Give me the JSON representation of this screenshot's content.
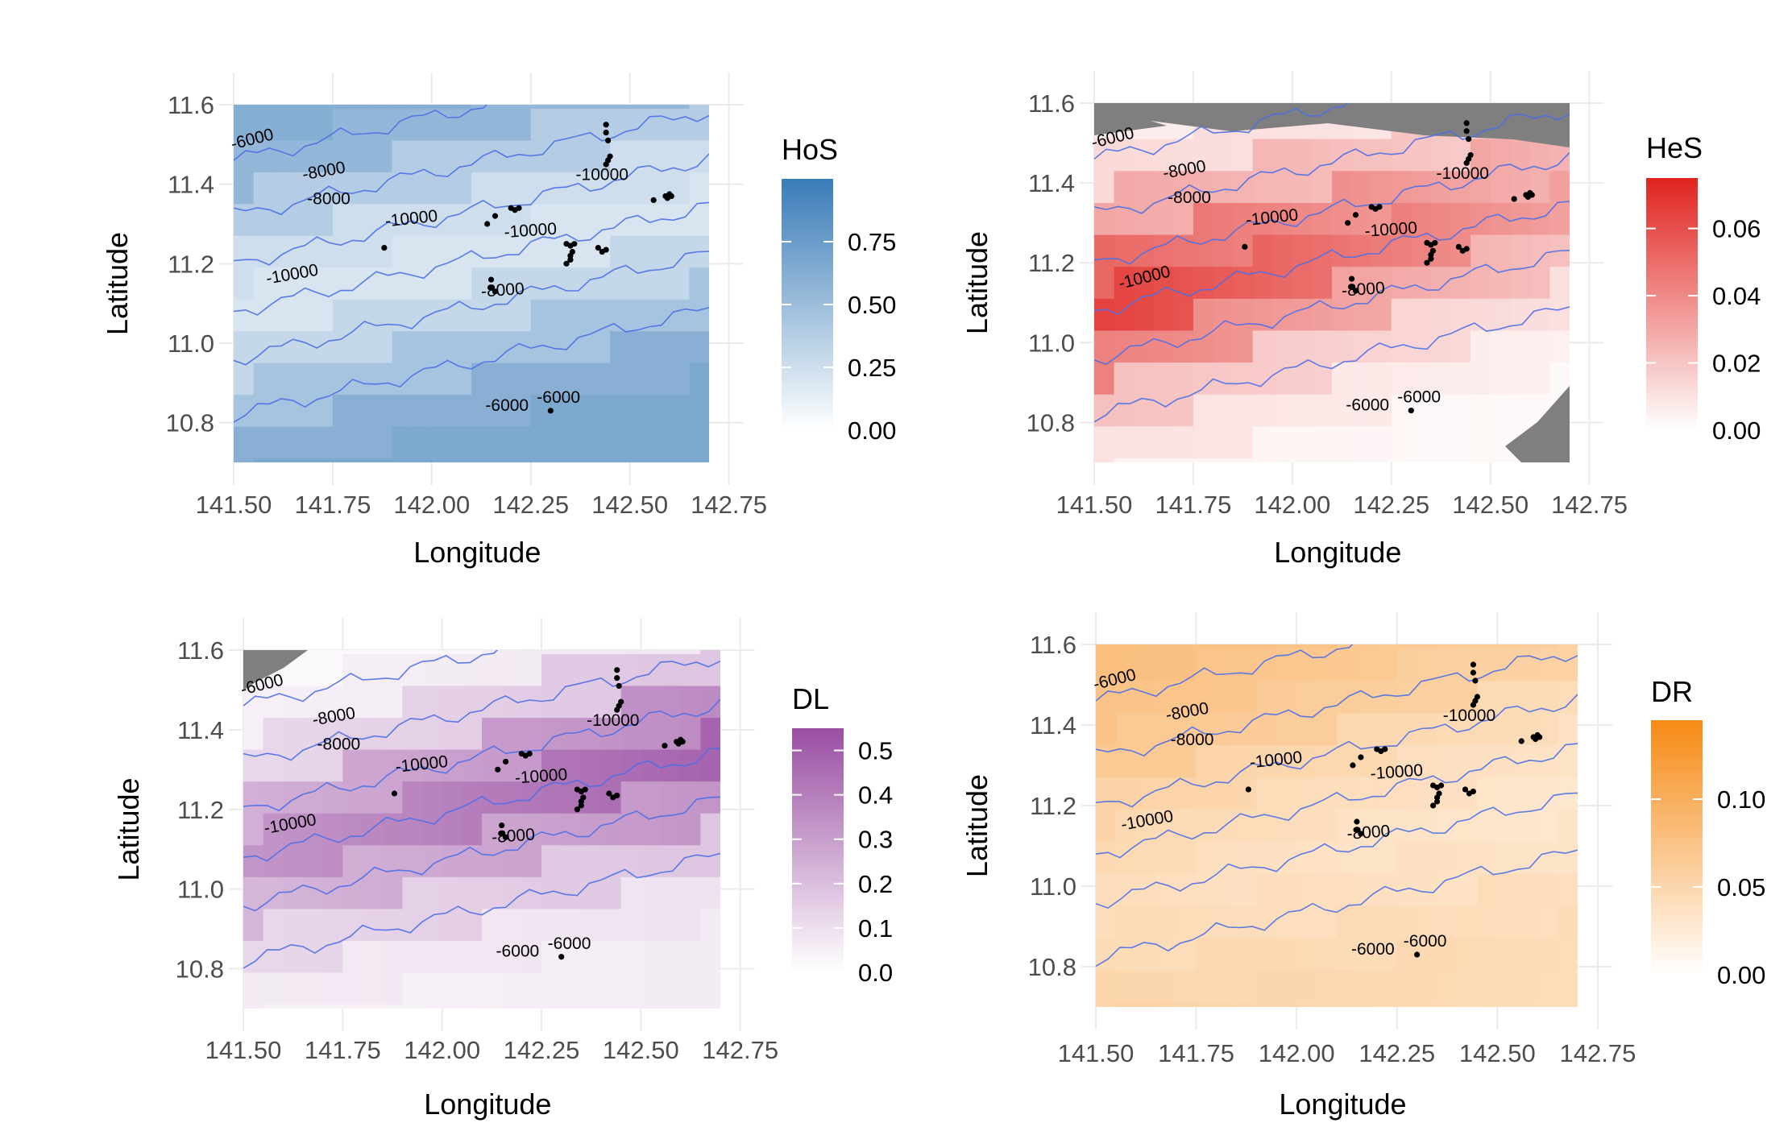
{
  "figure": {
    "panels": [
      {
        "id": "hos",
        "chart_data": {
          "type": "heatmap",
          "title": "",
          "xlabel": "Longitude",
          "ylabel": "Latitude",
          "xlim": [
            141.5,
            142.7
          ],
          "ylim": [
            10.7,
            11.6
          ],
          "xticks": [
            "141.50",
            "141.75",
            "142.00",
            "142.25",
            "142.50",
            "142.75"
          ],
          "yticks": [
            "10.8",
            "11.0",
            "11.2",
            "11.4",
            "11.6"
          ],
          "legend": {
            "title": "HoS",
            "placement": "right",
            "ticks": [
              "0.00",
              "0.25",
              "0.50",
              "0.75"
            ],
            "range": [
              0,
              1
            ],
            "color_low": "#ffffff",
            "color_high": "#3a7cb8"
          },
          "land_masks": [],
          "contour_labels": [
            {
              "text": "-6000",
              "x": 141.55,
              "y": 11.5,
              "angle": -14
            },
            {
              "text": "-8000",
              "x": 141.73,
              "y": 11.42,
              "angle": -10
            },
            {
              "text": "-8000",
              "x": 141.74,
              "y": 11.35,
              "angle": 0
            },
            {
              "text": "-10000",
              "x": 141.95,
              "y": 11.3,
              "angle": -6
            },
            {
              "text": "-10000",
              "x": 141.65,
              "y": 11.16,
              "angle": -10
            },
            {
              "text": "-10000",
              "x": 142.25,
              "y": 11.27,
              "angle": -4
            },
            {
              "text": "-10000",
              "x": 142.43,
              "y": 11.41,
              "angle": 0
            },
            {
              "text": "-8000",
              "x": 142.18,
              "y": 11.12,
              "angle": -4
            },
            {
              "text": "-6000",
              "x": 142.19,
              "y": 10.83,
              "angle": 0
            },
            {
              "text": "-6000",
              "x": 142.32,
              "y": 10.85,
              "angle": 0
            }
          ]
        }
      },
      {
        "id": "hes",
        "chart_data": {
          "type": "heatmap",
          "title": "",
          "xlabel": "Longitude",
          "ylabel": "Latitude",
          "xlim": [
            141.5,
            142.7
          ],
          "ylim": [
            10.7,
            11.6
          ],
          "xticks": [
            "141.50",
            "141.75",
            "142.00",
            "142.25",
            "142.50",
            "142.75"
          ],
          "yticks": [
            "10.8",
            "11.0",
            "11.2",
            "11.4",
            "11.6"
          ],
          "legend": {
            "title": "HeS",
            "placement": "right",
            "ticks": [
              "0.00",
              "0.02",
              "0.04",
              "0.06"
            ],
            "range": [
              0,
              0.075
            ],
            "color_low": "#ffffff",
            "color_high": "#e0241f"
          },
          "land_masks": [
            "top",
            "bottom-right"
          ],
          "contour_labels": [
            {
              "text": "-6000",
              "x": 141.55,
              "y": 11.5,
              "angle": -14
            },
            {
              "text": "-8000",
              "x": 141.73,
              "y": 11.42,
              "angle": -10
            },
            {
              "text": "-8000",
              "x": 141.74,
              "y": 11.35,
              "angle": 0
            },
            {
              "text": "-10000",
              "x": 141.95,
              "y": 11.3,
              "angle": -6
            },
            {
              "text": "-10000",
              "x": 141.63,
              "y": 11.15,
              "angle": -14
            },
            {
              "text": "-10000",
              "x": 142.25,
              "y": 11.27,
              "angle": -4
            },
            {
              "text": "-10000",
              "x": 142.43,
              "y": 11.41,
              "angle": 0
            },
            {
              "text": "-8000",
              "x": 142.18,
              "y": 11.12,
              "angle": -4
            },
            {
              "text": "-6000",
              "x": 142.19,
              "y": 10.83,
              "angle": 0
            },
            {
              "text": "-6000",
              "x": 142.32,
              "y": 10.85,
              "angle": 0
            }
          ]
        }
      },
      {
        "id": "dl",
        "chart_data": {
          "type": "heatmap",
          "title": "",
          "xlabel": "Longitude",
          "ylabel": "Latitude",
          "xlim": [
            141.5,
            142.7
          ],
          "ylim": [
            10.7,
            11.6
          ],
          "xticks": [
            "141.50",
            "141.75",
            "142.00",
            "142.25",
            "142.50",
            "142.75"
          ],
          "yticks": [
            "10.8",
            "11.0",
            "11.2",
            "11.4",
            "11.6"
          ],
          "legend": {
            "title": "DL",
            "placement": "right",
            "ticks": [
              "0.0",
              "0.1",
              "0.2",
              "0.3",
              "0.4",
              "0.5"
            ],
            "range": [
              0,
              0.55
            ],
            "color_low": "#ffffff",
            "color_high": "#9a4ea3"
          },
          "land_masks": [
            "top-left"
          ],
          "contour_labels": [
            {
              "text": "-6000",
              "x": 141.55,
              "y": 11.5,
              "angle": -14
            },
            {
              "text": "-8000",
              "x": 141.73,
              "y": 11.42,
              "angle": -10
            },
            {
              "text": "-8000",
              "x": 141.74,
              "y": 11.35,
              "angle": 0
            },
            {
              "text": "-10000",
              "x": 141.95,
              "y": 11.3,
              "angle": -6
            },
            {
              "text": "-10000",
              "x": 141.62,
              "y": 11.15,
              "angle": -10
            },
            {
              "text": "-10000",
              "x": 142.25,
              "y": 11.27,
              "angle": -4
            },
            {
              "text": "-10000",
              "x": 142.43,
              "y": 11.41,
              "angle": 0
            },
            {
              "text": "-8000",
              "x": 142.18,
              "y": 11.12,
              "angle": -4
            },
            {
              "text": "-6000",
              "x": 142.19,
              "y": 10.83,
              "angle": 0
            },
            {
              "text": "-6000",
              "x": 142.32,
              "y": 10.85,
              "angle": 0
            }
          ]
        }
      },
      {
        "id": "dr",
        "chart_data": {
          "type": "heatmap",
          "title": "",
          "xlabel": "Longitude",
          "ylabel": "Latitude",
          "xlim": [
            141.5,
            142.7
          ],
          "ylim": [
            10.7,
            11.6
          ],
          "xticks": [
            "141.50",
            "141.75",
            "142.00",
            "142.25",
            "142.50",
            "142.75"
          ],
          "yticks": [
            "10.8",
            "11.0",
            "11.2",
            "11.4",
            "11.6"
          ],
          "legend": {
            "title": "DR",
            "placement": "right",
            "ticks": [
              "0.00",
              "0.05",
              "0.10"
            ],
            "range": [
              0,
              0.145
            ],
            "color_low": "#ffffff",
            "color_high": "#f68a14"
          },
          "land_masks": [],
          "contour_labels": [
            {
              "text": "-6000",
              "x": 141.55,
              "y": 11.5,
              "angle": -14
            },
            {
              "text": "-8000",
              "x": 141.73,
              "y": 11.42,
              "angle": -10
            },
            {
              "text": "-8000",
              "x": 141.74,
              "y": 11.35,
              "angle": 0
            },
            {
              "text": "-10000",
              "x": 141.95,
              "y": 11.3,
              "angle": -6
            },
            {
              "text": "-10000",
              "x": 141.63,
              "y": 11.15,
              "angle": -10
            },
            {
              "text": "-10000",
              "x": 142.25,
              "y": 11.27,
              "angle": -4
            },
            {
              "text": "-10000",
              "x": 142.43,
              "y": 11.41,
              "angle": 0
            },
            {
              "text": "-8000",
              "x": 142.18,
              "y": 11.12,
              "angle": -4
            },
            {
              "text": "-6000",
              "x": 142.19,
              "y": 10.83,
              "angle": 0
            },
            {
              "text": "-6000",
              "x": 142.32,
              "y": 10.85,
              "angle": 0
            }
          ]
        }
      }
    ],
    "sample_points": [
      [
        141.88,
        11.24
      ],
      [
        142.14,
        11.3
      ],
      [
        142.16,
        11.32
      ],
      [
        142.2,
        11.34
      ],
      [
        142.21,
        11.335
      ],
      [
        142.22,
        11.34
      ],
      [
        142.15,
        11.16
      ],
      [
        142.15,
        11.14
      ],
      [
        142.16,
        11.13
      ],
      [
        142.3,
        10.83
      ],
      [
        142.34,
        11.25
      ],
      [
        142.35,
        11.245
      ],
      [
        142.36,
        11.25
      ],
      [
        142.355,
        11.23
      ],
      [
        142.35,
        11.22
      ],
      [
        142.35,
        11.21
      ],
      [
        142.34,
        11.2
      ],
      [
        142.42,
        11.24
      ],
      [
        142.43,
        11.23
      ],
      [
        142.44,
        11.235
      ],
      [
        142.44,
        11.55
      ],
      [
        142.44,
        11.53
      ],
      [
        142.445,
        11.51
      ],
      [
        142.45,
        11.47
      ],
      [
        142.445,
        11.46
      ],
      [
        142.44,
        11.45
      ],
      [
        142.56,
        11.36
      ],
      [
        142.59,
        11.37
      ],
      [
        142.6,
        11.375
      ],
      [
        142.605,
        11.37
      ],
      [
        142.595,
        11.365
      ]
    ]
  }
}
